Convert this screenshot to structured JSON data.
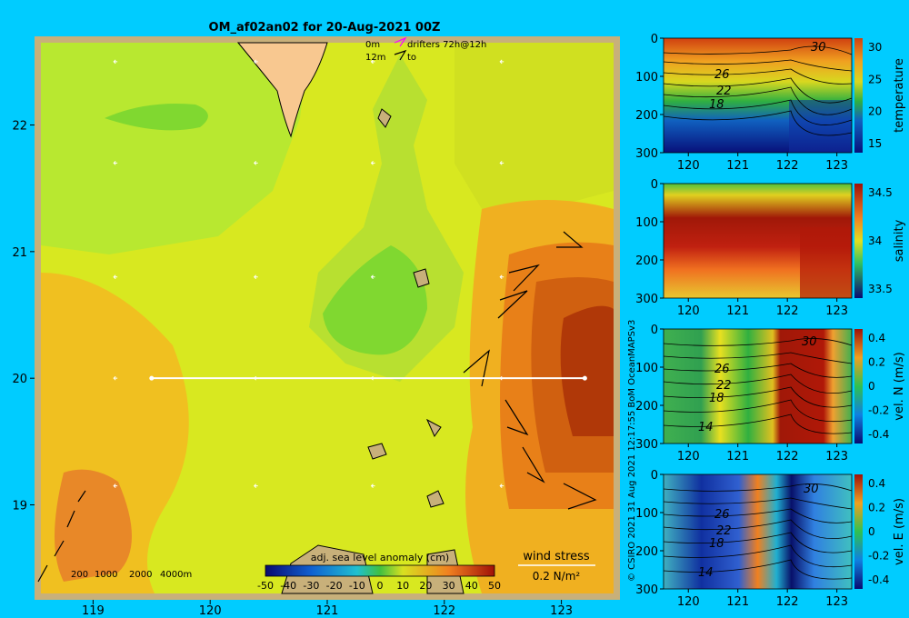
{
  "chart_data": [
    {
      "type": "heatmap",
      "title": "OM_af02an02 for 20-Aug-2021 00Z",
      "x_ticks": [
        119,
        120,
        121,
        122,
        123
      ],
      "y_ticks": [
        19,
        20,
        21,
        22
      ],
      "xlim": [
        118.5,
        123.5
      ],
      "ylim": [
        18.25,
        22.7
      ],
      "field": "adj. sea level anomaly (cm)",
      "colorbar_ticks": [
        -50,
        -40,
        -30,
        -20,
        -10,
        0,
        10,
        20,
        30,
        40,
        50
      ],
      "depth_legend": [
        "200",
        "1000",
        "2000",
        "4000m"
      ],
      "drifter_legend": {
        "row1_left": "0m",
        "row1_right": "drifters 72h@12h",
        "row2_left": "12m",
        "row2_right": "to"
      },
      "wind_stress_label": "wind stress",
      "wind_stress_scale": "0.2 N/m²",
      "section_line": {
        "lat": 20,
        "lon_start": 119.5,
        "lon_end": 123.2
      },
      "grid_arrow_points": [
        [
          119.2,
          22.5
        ],
        [
          120.4,
          22.5
        ],
        [
          121.4,
          22.5
        ],
        [
          122.5,
          22.5
        ],
        [
          119.2,
          21.7
        ],
        [
          120.4,
          21.7
        ],
        [
          121.4,
          21.7
        ],
        [
          122.5,
          21.7
        ],
        [
          119.2,
          20.8
        ],
        [
          120.4,
          20.8
        ],
        [
          121.4,
          20.8
        ],
        [
          122.5,
          20.8
        ],
        [
          119.2,
          20.0
        ],
        [
          120.4,
          20.0
        ],
        [
          121.4,
          20.0
        ],
        [
          122.5,
          20.0
        ],
        [
          119.2,
          19.15
        ],
        [
          120.4,
          19.15
        ],
        [
          121.4,
          19.15
        ],
        [
          122.5,
          19.15
        ]
      ]
    },
    {
      "type": "heatmap",
      "ylabel": "temperature",
      "x_ticks": [
        120,
        121,
        122,
        123
      ],
      "y_ticks": [
        0,
        100,
        200,
        300
      ],
      "ylim": [
        0,
        300
      ],
      "colorbar_ticks": [
        "30",
        "25",
        "20",
        "15"
      ],
      "contour_labels": [
        "30",
        "26",
        "22",
        "18"
      ]
    },
    {
      "type": "heatmap",
      "ylabel": "salinity",
      "x_ticks": [
        120,
        121,
        122,
        123
      ],
      "y_ticks": [
        0,
        100,
        200,
        300
      ],
      "ylim": [
        0,
        300
      ],
      "colorbar_ticks": [
        "34.5",
        "34",
        "33.5"
      ]
    },
    {
      "type": "heatmap",
      "ylabel": "vel. N (m/s)",
      "x_ticks": [
        120,
        121,
        122,
        123
      ],
      "y_ticks": [
        0,
        100,
        200,
        300
      ],
      "ylim": [
        0,
        300
      ],
      "colorbar_ticks": [
        "0.4",
        "0.2",
        "0",
        "-0.2",
        "-0.4"
      ],
      "contour_labels": [
        "30",
        "26",
        "22",
        "18",
        "14"
      ]
    },
    {
      "type": "heatmap",
      "ylabel": "vel. E (m/s)",
      "x_ticks": [
        120,
        121,
        122,
        123
      ],
      "y_ticks": [
        0,
        100,
        200,
        300
      ],
      "ylim": [
        0,
        300
      ],
      "colorbar_ticks": [
        "0.4",
        "0.2",
        "0",
        "-0.2",
        "-0.4"
      ],
      "contour_labels": [
        "30",
        "26",
        "22",
        "18",
        "14"
      ]
    }
  ],
  "credit": "© CSIRO 2021  31 Aug 2021 12:17:55 BoM OceanMAPSv3"
}
